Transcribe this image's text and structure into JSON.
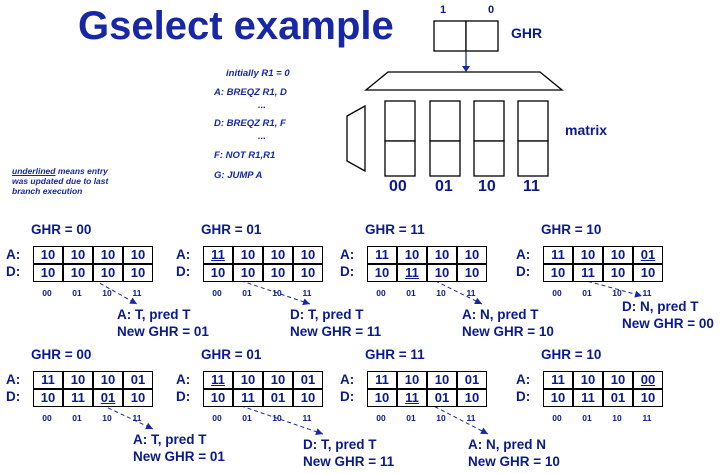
{
  "title": "Gselect example",
  "code": {
    "line1": "initially R1 = 0",
    "line2": "A: BREQZ  R1,  D",
    "dots1": "...",
    "line3": "D: BREQZ  R1,  F",
    "dots2": "...",
    "line4": "F: NOT R1,R1",
    "line5": "G: JUMP A"
  },
  "note": {
    "underlined": "underlined",
    "rest1": " means entry",
    "rest2": "was updated due to last",
    "rest3": "branch execution"
  },
  "ghr_diagram": {
    "label": "GHR",
    "bit_left": "1",
    "bit_right": "0",
    "matrix_label": "matrix",
    "columns": [
      "00",
      "01",
      "10",
      "11"
    ]
  },
  "row_labels": {
    "a": "A:",
    "d": "D:"
  },
  "col_labels": [
    "00",
    "01",
    "10",
    "11"
  ],
  "snapshots": [
    {
      "ghr": "GHR = 00",
      "a": [
        "10",
        "10",
        "10",
        "10"
      ],
      "d": [
        "10",
        "10",
        "10",
        "10"
      ],
      "ua": [],
      "ud": [],
      "result": [
        "A: T, pred T",
        "New GHR = 01"
      ]
    },
    {
      "ghr": "GHR = 01",
      "a": [
        "11",
        "10",
        "10",
        "10"
      ],
      "d": [
        "10",
        "10",
        "10",
        "10"
      ],
      "ua": [
        0
      ],
      "ud": [],
      "result": [
        "D: T, pred T",
        "New GHR = 11"
      ]
    },
    {
      "ghr": "GHR = 11",
      "a": [
        "11",
        "10",
        "10",
        "10"
      ],
      "d": [
        "10",
        "11",
        "10",
        "10"
      ],
      "ua": [],
      "ud": [
        1
      ],
      "result": [
        "A: N, pred T",
        "New GHR = 10"
      ]
    },
    {
      "ghr": "GHR = 10",
      "a": [
        "11",
        "10",
        "10",
        "01"
      ],
      "d": [
        "10",
        "11",
        "10",
        "10"
      ],
      "ua": [
        3
      ],
      "ud": [],
      "result": [
        "D: N, pred T",
        "New GHR = 00"
      ]
    },
    {
      "ghr": "GHR = 00",
      "a": [
        "11",
        "10",
        "10",
        "01"
      ],
      "d": [
        "10",
        "11",
        "01",
        "10"
      ],
      "ua": [],
      "ud": [
        2
      ],
      "result": [
        "A: T, pred T",
        "New GHR = 01"
      ]
    },
    {
      "ghr": "GHR = 01",
      "a": [
        "11",
        "10",
        "10",
        "01"
      ],
      "d": [
        "10",
        "11",
        "01",
        "10"
      ],
      "ua": [
        0
      ],
      "ud": [],
      "result": [
        "D: T, pred T",
        "New GHR = 11"
      ]
    },
    {
      "ghr": "GHR = 11",
      "a": [
        "11",
        "10",
        "10",
        "01"
      ],
      "d": [
        "10",
        "11",
        "01",
        "10"
      ],
      "ua": [],
      "ud": [
        1
      ],
      "result": [
        "A: N, pred N",
        "New GHR = 10"
      ]
    },
    {
      "ghr": "GHR = 10",
      "a": [
        "11",
        "10",
        "10",
        "00"
      ],
      "d": [
        "10",
        "11",
        "01",
        "10"
      ],
      "ua": [
        3
      ],
      "ud": [],
      "result": []
    }
  ]
}
